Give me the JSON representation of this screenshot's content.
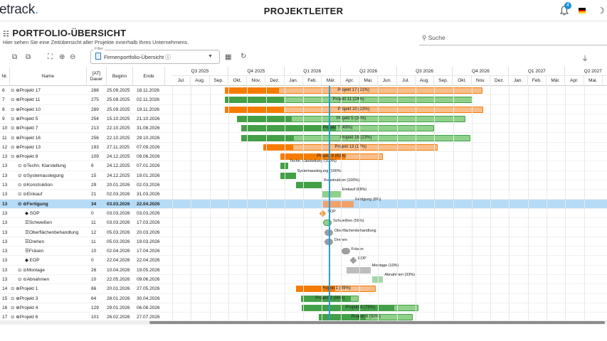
{
  "app": {
    "logo_text": "etrack",
    "logo_dot": ".",
    "title": "PROJEKTLEITER",
    "notif_count": "4"
  },
  "page": {
    "title": "PORTFOLIO-ÜBERSICHT",
    "subtitle": "Hier sehen Sie eine Zeitübersicht aller Projekte innerhalb Ihres Unternehmens.",
    "search_placeholder": "Suche"
  },
  "filter": {
    "label": "Filter",
    "value": "Firmenportfolio-Übersicht ⓘ"
  },
  "columns": {
    "nr": "Nr.",
    "name": "Name",
    "dauer": "[AT] Dauer",
    "beginn": "Beginn",
    "ende": "Ende"
  },
  "quarters": [
    "Q3 2025",
    "Q4 2025",
    "Q1 2026",
    "Q2 2026",
    "Q3 2026",
    "Q4 2026",
    "Q1 2027",
    "Q2 2027"
  ],
  "months": [
    "Jul.",
    "Aug.",
    "Sep.",
    "Okt.",
    "Nov.",
    "Dez.",
    "Jan.",
    "Feb.",
    "Mär.",
    "Apr.",
    "Mai.",
    "Jun.",
    "Jul.",
    "Aug.",
    "Sep.",
    "Okt.",
    "Nov.",
    "Dez.",
    "Jan.",
    "Feb.",
    "Mär.",
    "Apr.",
    "Mai."
  ],
  "rows": [
    {
      "nr": "6",
      "name": "Projekt 17",
      "dauer": "288",
      "beginn": "25.09.2025",
      "ende": "18.11.2026",
      "label": "Projekt 17 (21%)",
      "color": "#f57c00",
      "progress": 21,
      "indent": 0,
      "type": "project"
    },
    {
      "nr": "7",
      "name": "Projekt 11",
      "dauer": "275",
      "beginn": "25.09.2025",
      "ende": "02.11.2026",
      "label": "Projekt 11 (24%)",
      "color": "#43a047",
      "progress": 24,
      "indent": 0,
      "type": "project"
    },
    {
      "nr": "8",
      "name": "Projekt 10",
      "dauer": "289",
      "beginn": "25.09.2025",
      "ende": "19.11.2026",
      "label": "Projekt 10 (23%)",
      "color": "#f57c00",
      "progress": 23,
      "indent": 0,
      "type": "project"
    },
    {
      "nr": "9",
      "name": "Projekt 5",
      "dauer": "254",
      "beginn": "15.10.2025",
      "ende": "21.10.2026",
      "label": "Projekt 5 (24%)",
      "color": "#43a047",
      "progress": 24,
      "indent": 0,
      "type": "project"
    },
    {
      "nr": "10",
      "name": "Projekt 7",
      "dauer": "213",
      "beginn": "22.10.2025",
      "ende": "31.08.2026",
      "label": "Projekt 7 (49%)",
      "color": "#43a047",
      "progress": 49,
      "indent": 0,
      "type": "project"
    },
    {
      "nr": "11",
      "name": "Projekt 16",
      "dauer": "256",
      "beginn": "22.10.2025",
      "ende": "29.10.2026",
      "label": "Projekt 16 (23%)",
      "color": "#43a047",
      "progress": 23,
      "indent": 0,
      "type": "project"
    },
    {
      "nr": "12",
      "name": "Projekt 13",
      "dauer": "193",
      "beginn": "27.11.2025",
      "ende": "07.09.2026",
      "label": "Projekt 13 (17%)",
      "color": "#f57c00",
      "progress": 17,
      "indent": 0,
      "type": "project"
    },
    {
      "nr": "13",
      "name": "Projekt 8",
      "dauer": "109",
      "beginn": "24.12.2025",
      "ende": "09.06.2026",
      "label": "Projekt 8 (63%)",
      "color": "#f57c00",
      "progress": 63,
      "indent": 0,
      "type": "project"
    },
    {
      "nr": "13",
      "name": "Techn. Klarstellung",
      "dauer": "6",
      "beginn": "24.12.2025",
      "ende": "07.01.2026",
      "label": "Techn. Klarstellung (100%)",
      "color": "#43a047",
      "progress": 100,
      "indent": 1,
      "type": "task"
    },
    {
      "nr": "13",
      "name": "Systemauslegung",
      "dauer": "15",
      "beginn": "24.12.2025",
      "ende": "19.01.2026",
      "label": "Systemauslegung (100%)",
      "color": "#43a047",
      "progress": 100,
      "indent": 1,
      "type": "task"
    },
    {
      "nr": "13",
      "name": "Konstruktion",
      "dauer": "29",
      "beginn": "20.01.2026",
      "ende": "02.03.2026",
      "label": "Konstruktion (100%)",
      "color": "#43a047",
      "progress": 100,
      "indent": 1,
      "type": "task"
    },
    {
      "nr": "13",
      "name": "Einkauf",
      "dauer": "21",
      "beginn": "02.03.2026",
      "ende": "31.03.2026",
      "label": "Einkauf (68%)",
      "color": "#8fd18a",
      "progress": 68,
      "indent": 1,
      "type": "task"
    },
    {
      "nr": "13",
      "name": "Fertigung",
      "dauer": "34",
      "beginn": "03.03.2026",
      "ende": "22.04.2026",
      "label": "Fertigung (8%)",
      "color": "#f1a26a",
      "progress": 8,
      "indent": 1,
      "type": "task",
      "selected": true
    },
    {
      "nr": "13",
      "name": "SOP",
      "dauer": "0",
      "beginn": "03.03.2026",
      "ende": "03.03.2026",
      "label": "SOP",
      "color": "#f5a04a",
      "progress": 0,
      "indent": 2,
      "type": "milestone"
    },
    {
      "nr": "13",
      "name": "Schweißen",
      "dauer": "11",
      "beginn": "03.03.2026",
      "ende": "17.03.2026",
      "label": "Schweißen (50%)",
      "color": "#43a047",
      "progress": 50,
      "indent": 2,
      "type": "small"
    },
    {
      "nr": "13",
      "name": "Oberflächenbehandlung",
      "dauer": "12",
      "beginn": "05.03.2026",
      "ende": "20.03.2026",
      "label": "Oberflächenbehandlung",
      "color": "#9e9e9e",
      "progress": 0,
      "indent": 2,
      "type": "small"
    },
    {
      "nr": "13",
      "name": "Drehen",
      "dauer": "11",
      "beginn": "05.03.2026",
      "ende": "19.03.2026",
      "label": "Drehen",
      "color": "#9e9e9e",
      "progress": 0,
      "indent": 2,
      "type": "small"
    },
    {
      "nr": "13",
      "name": "Fräsen",
      "dauer": "10",
      "beginn": "02.04.2026",
      "ende": "17.04.2026",
      "label": "Fräsen",
      "color": "#9e9e9e",
      "progress": 0,
      "indent": 2,
      "type": "small"
    },
    {
      "nr": "13",
      "name": "EOP",
      "dauer": "0",
      "beginn": "22.04.2026",
      "ende": "22.04.2026",
      "label": "EOP",
      "color": "#9e9e9e",
      "progress": 0,
      "indent": 2,
      "type": "milestone"
    },
    {
      "nr": "13",
      "name": "Montage",
      "dauer": "26",
      "beginn": "10.04.2026",
      "ende": "19.05.2026",
      "label": "Montage (10%)",
      "color": "#bdbdbd",
      "progress": 10,
      "indent": 1,
      "type": "task"
    },
    {
      "nr": "13",
      "name": "Abnahmen",
      "dauer": "10",
      "beginn": "22.05.2026",
      "ende": "09.06.2026",
      "label": "Abnahmen (33%)",
      "color": "#a5d6a7",
      "progress": 33,
      "indent": 1,
      "type": "task"
    },
    {
      "nr": "14",
      "name": "Projekt 1",
      "dauer": "86",
      "beginn": "20.01.2026",
      "ende": "27.05.2026",
      "label": "Projekt 1 (49%)",
      "color": "#f57c00",
      "progress": 49,
      "indent": 0,
      "type": "project"
    },
    {
      "nr": "15",
      "name": "Projekt 3",
      "dauer": "64",
      "beginn": "28.01.2026",
      "ende": "30.04.2026",
      "label": "Projekt 3 (86%)",
      "color": "#43a047",
      "progress": 86,
      "indent": 0,
      "type": "project"
    },
    {
      "nr": "16",
      "name": "Projekt 4",
      "dauer": "129",
      "beginn": "29.01.2026",
      "ende": "06.08.2026",
      "label": "Projekt 4 (79%)",
      "color": "#43a047",
      "progress": 79,
      "indent": 0,
      "type": "project"
    },
    {
      "nr": "17",
      "name": "Projekt 6",
      "dauer": "101",
      "beginn": "26.02.2026",
      "ende": "27.07.2026",
      "label": "Projekt 6 (50%)",
      "color": "#43a047",
      "progress": 50,
      "indent": 0,
      "type": "project"
    }
  ]
}
